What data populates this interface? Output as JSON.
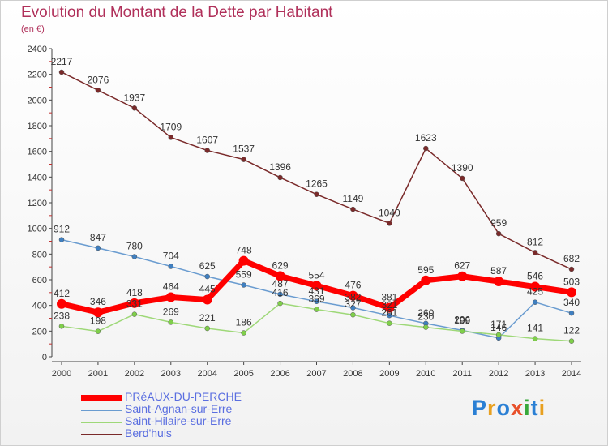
{
  "title": "Evolution du Montant de la Dette par Habitant",
  "subtitle": "(en €)",
  "logo": {
    "text": "Proxiti",
    "colors": [
      "#2a7fd4",
      "#e8a020",
      "#2a7fd4",
      "#e8502a",
      "#38a83a",
      "#2a7fd4",
      "#e8a020"
    ]
  },
  "chart_data": {
    "type": "line",
    "title": "Evolution du Montant de la Dette par Habitant",
    "ylabel": "(en €)",
    "x": [
      "2000",
      "2001",
      "2002",
      "2003",
      "2004",
      "2005",
      "2006",
      "2007",
      "2008",
      "2009",
      "2010",
      "2011",
      "2012",
      "2013",
      "2014"
    ],
    "ylim": [
      0,
      2400
    ],
    "yticks": [
      "0",
      "200",
      "400",
      "600",
      "800",
      "1000",
      "1200",
      "1400",
      "1600",
      "1800",
      "2000",
      "2200",
      "2400"
    ],
    "grid": false,
    "legend_position": "bottom-left",
    "series": [
      {
        "name": "PRéAUX-DU-PERCHE",
        "color": "#ff0000",
        "marker": "#ff0000",
        "width": 7,
        "values": [
          412,
          346,
          418,
          464,
          445,
          748,
          629,
          554,
          476,
          381,
          595,
          627,
          587,
          546,
          503
        ],
        "labels": [
          "412",
          "346",
          "418",
          "464",
          "445",
          "748",
          "629",
          "554",
          "476",
          "381",
          "595",
          "627",
          "587",
          "546",
          "503"
        ]
      },
      {
        "name": "Saint-Agnan-sur-Erre",
        "color": "#6a9cd0",
        "marker": "#3f7fc0",
        "width": 1.5,
        "values": [
          912,
          847,
          780,
          704,
          625,
          559,
          487,
          431,
          382,
          321,
          260,
          206,
          146,
          425,
          340
        ],
        "labels": [
          "912",
          "847",
          "780",
          "704",
          "625",
          "559",
          "487",
          "431",
          "382",
          "321",
          "260",
          "206",
          "146",
          "425",
          "340"
        ]
      },
      {
        "name": "Saint-Hilaire-sur-Erre",
        "color": "#9ed878",
        "marker": "#7fcf4a",
        "width": 1.5,
        "values": [
          238,
          198,
          331,
          269,
          221,
          186,
          416,
          369,
          327,
          261,
          230,
          199,
          171,
          141,
          122
        ],
        "labels": [
          "238",
          "198",
          "331",
          "269",
          "221",
          "186",
          "416",
          "369",
          "327",
          "261",
          "230",
          "199",
          "171",
          "141",
          "122"
        ]
      },
      {
        "name": "Berd'huis",
        "color": "#7a2a2a",
        "marker": "#7a2a2a",
        "width": 1.5,
        "values": [
          2217,
          2076,
          1937,
          1709,
          1607,
          1537,
          1396,
          1265,
          1149,
          1040,
          1623,
          1390,
          959,
          812,
          682
        ],
        "labels": [
          "2217",
          "2076",
          "1937",
          "1709",
          "1607",
          "1537",
          "1396",
          "1265",
          "1149",
          "1040",
          "1623",
          "1390",
          "959",
          "812",
          "682"
        ]
      }
    ]
  }
}
